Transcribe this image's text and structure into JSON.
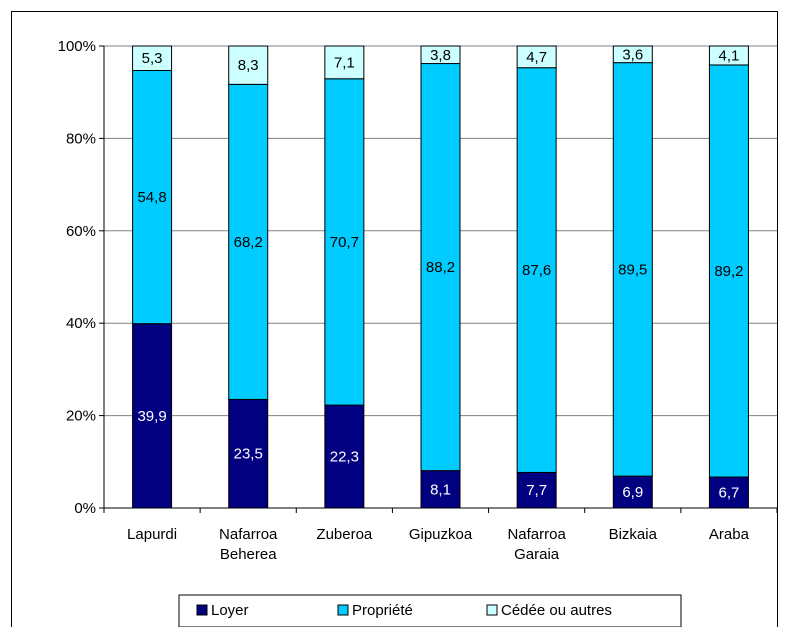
{
  "chart_data": {
    "type": "bar",
    "stacked": true,
    "percent": true,
    "categories": [
      "Lapurdi",
      "Nafarroa\nBeherea",
      "Zuberoa",
      "Gipuzkoa",
      "Nafarroa\nGaraia",
      "Bizkaia",
      "Araba"
    ],
    "series": [
      {
        "name": "Loyer",
        "color": "#000080",
        "label_color": "#ffffff",
        "values": [
          39.9,
          23.5,
          22.3,
          8.1,
          7.7,
          6.9,
          6.7
        ]
      },
      {
        "name": "Propriété",
        "color": "#00ccff",
        "label_color": "#000000",
        "values": [
          54.8,
          68.2,
          70.7,
          88.2,
          87.6,
          89.5,
          89.2
        ]
      },
      {
        "name": "Cédée ou autres",
        "color": "#ccffff",
        "label_color": "#000000",
        "values": [
          5.3,
          8.3,
          7.1,
          3.8,
          4.7,
          3.6,
          4.1
        ]
      }
    ],
    "ylim": [
      0,
      100
    ],
    "yticks": [
      "0%",
      "20%",
      "40%",
      "60%",
      "80%",
      "100%"
    ],
    "grid": true,
    "legend_position": "bottom",
    "decimal_separator": ","
  }
}
